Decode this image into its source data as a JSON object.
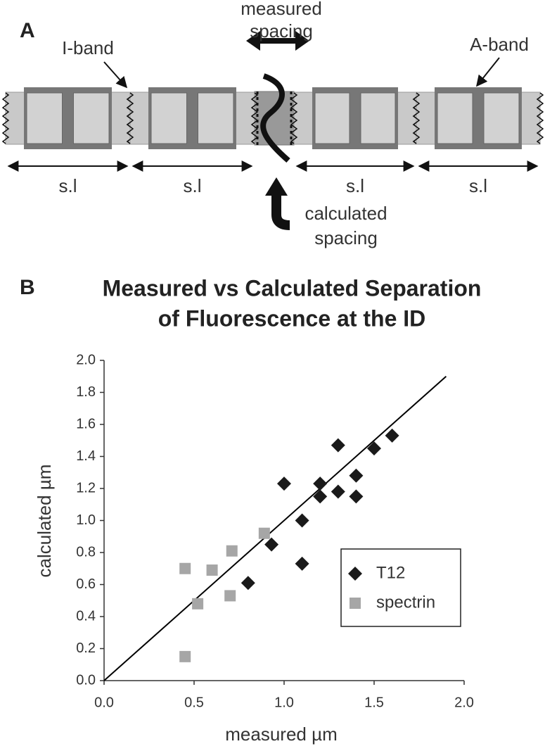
{
  "panel_a": {
    "label": "A",
    "measured": [
      "measured",
      "spacing"
    ],
    "calculated": [
      "calculated",
      "spacing"
    ],
    "i_band": "I-band",
    "a_band": "A-band",
    "sl_labels": [
      "s.l",
      "s.l",
      "s.l",
      "s.l"
    ]
  },
  "chart_data": {
    "type": "scatter",
    "panel_label": "B",
    "title": [
      "Measured vs Calculated Separation",
      "of Fluorescence at the ID"
    ],
    "x_label": "measured µm",
    "y_label": "calculated µm",
    "xlim": [
      0,
      2
    ],
    "ylim": [
      0,
      2
    ],
    "xticks": [
      {
        "value": 0,
        "label": "0.0"
      },
      0.5,
      {
        "value": 1,
        "label": "1.0"
      },
      1.5,
      {
        "value": 2,
        "label": "2.0"
      }
    ],
    "yticks": [
      {
        "value": 0,
        "label": "0.0"
      },
      0.2,
      0.4,
      0.6,
      0.8,
      {
        "value": 1,
        "label": "1.0"
      },
      1.2,
      1.4,
      1.6,
      1.8,
      {
        "value": 2,
        "label": "2.0"
      }
    ],
    "series": [
      {
        "name": "T12",
        "color": "#1a1a1a",
        "marker": "diamond",
        "x": [
          1.0,
          1.2,
          1.2,
          1.3,
          1.3,
          1.4,
          1.4,
          1.5,
          1.6,
          1.1,
          1.1,
          0.93,
          0.8
        ],
        "values": [
          1.23,
          1.23,
          1.15,
          1.47,
          1.18,
          1.28,
          1.15,
          1.45,
          1.53,
          1.0,
          0.73,
          0.85,
          0.61
        ]
      },
      {
        "name": "spectrin",
        "color": "#a6a6a6",
        "marker": "square",
        "x": [
          0.45,
          0.45,
          0.52,
          0.6,
          0.71,
          0.7,
          0.89
        ],
        "values": [
          0.7,
          0.15,
          0.48,
          0.69,
          0.81,
          0.53,
          0.92
        ]
      }
    ],
    "reference_line": {
      "x": [
        0,
        1.9
      ],
      "y": [
        0,
        1.9
      ],
      "color": "#000000"
    }
  }
}
